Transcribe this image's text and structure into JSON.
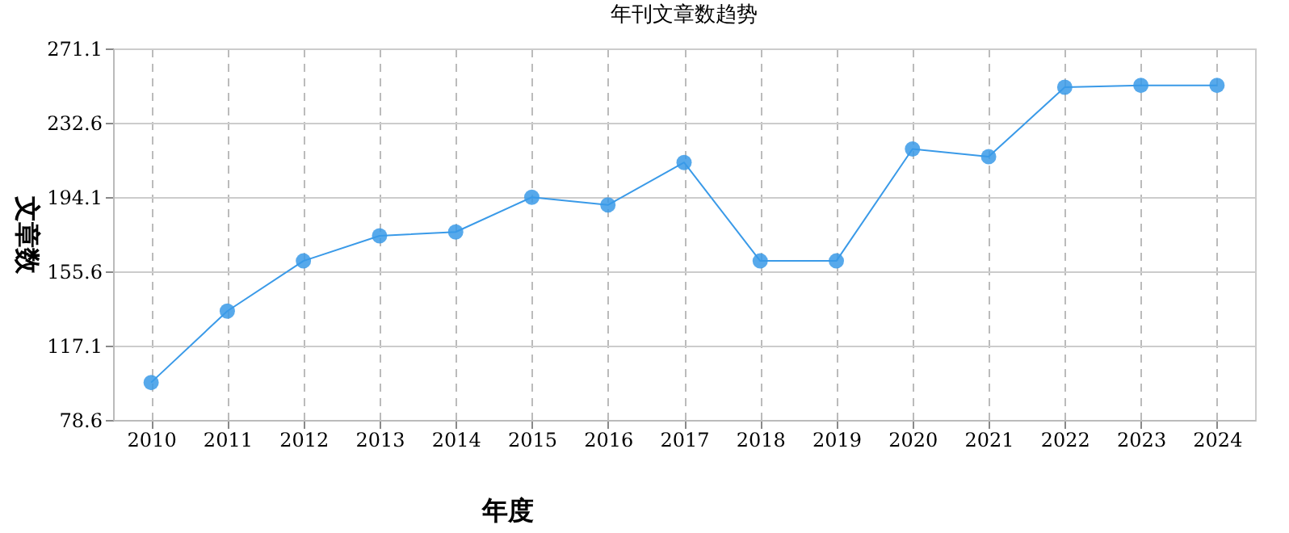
{
  "chart_data": {
    "type": "line",
    "title": "年刊文章数趋势",
    "xlabel": "年度",
    "ylabel": "文章数",
    "categories": [
      "2010",
      "2011",
      "2012",
      "2013",
      "2014",
      "2015",
      "2016",
      "2017",
      "2018",
      "2019",
      "2020",
      "2021",
      "2022",
      "2023",
      "2024"
    ],
    "series": [
      {
        "color": "#3a9ae8",
        "values": [
          98,
          135,
          161,
          174,
          176,
          194,
          190,
          212,
          161,
          161,
          219,
          215,
          251,
          252,
          252
        ]
      }
    ],
    "ylim": [
      78.6,
      271.1
    ],
    "yticks": [
      78.6,
      117.1,
      155.6,
      194.1,
      232.6,
      271.1
    ],
    "grid": true,
    "legend": false,
    "marker": "circle",
    "line_style": "solid"
  }
}
